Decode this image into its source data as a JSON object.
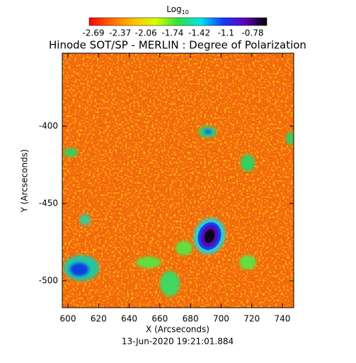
{
  "chart_data": {
    "type": "heatmap",
    "title": "Hinode SOT/SP - MERLIN : Degree of Polarization",
    "xlabel": "X (Arcseconds)",
    "ylabel": "Y (Arcseconds)",
    "xlim": [
      596.3,
      747.4
    ],
    "ylim": [
      -517.4,
      -352.8
    ],
    "xticks": [
      600,
      620,
      640,
      660,
      680,
      700,
      720,
      740
    ],
    "yticks": [
      -500,
      -450,
      -400
    ],
    "annotation": "13-Jun-2020 19:21:01.884",
    "colorbar": {
      "label": "Log",
      "label_sub": "10",
      "clim": [
        -2.69,
        -0.78
      ],
      "ticks": [
        -2.69,
        -2.37,
        -2.06,
        -1.74,
        -1.42,
        -1.1,
        -0.78
      ],
      "colors": [
        "#ff0000",
        "#ff6a00",
        "#ffc000",
        "#d8ff00",
        "#30e040",
        "#00e8e8",
        "#1040ff",
        "#6000c0",
        "#000000"
      ]
    }
  }
}
